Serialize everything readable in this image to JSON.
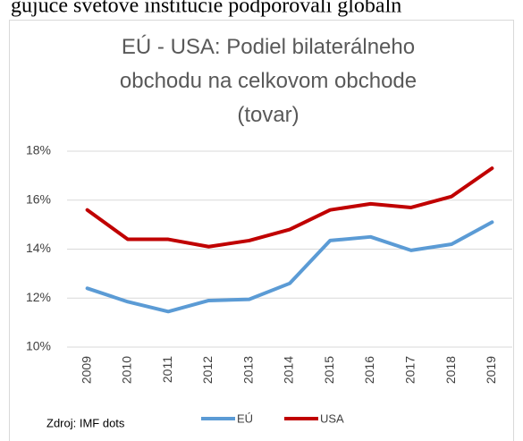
{
  "page_text": "gujúce svetové inštitúcie podporovali globáln",
  "chart_data": {
    "type": "line",
    "title": "EÚ - USA: Podiel bilaterálneho obchodu na celkovom obchode (tovar)",
    "source": "Zdroj: IMF dots",
    "categories": [
      "2009",
      "2010",
      "2011",
      "2012",
      "2013",
      "2014",
      "2015",
      "2016",
      "2017",
      "2018",
      "2019"
    ],
    "series": [
      {
        "name": "EÚ",
        "color": "#5b9bd5",
        "values": [
          12.4,
          11.85,
          11.45,
          11.9,
          11.95,
          12.6,
          14.35,
          14.5,
          13.95,
          14.2,
          15.1
        ]
      },
      {
        "name": "USA",
        "color": "#c00000",
        "values": [
          15.6,
          14.4,
          14.4,
          14.1,
          14.35,
          14.8,
          15.6,
          15.85,
          15.7,
          16.15,
          17.3
        ]
      }
    ],
    "ylim": [
      10,
      18
    ],
    "yticks": [
      {
        "value": 10,
        "label": "10%"
      },
      {
        "value": 12,
        "label": "12%"
      },
      {
        "value": 14,
        "label": "14%"
      },
      {
        "value": 16,
        "label": "16%"
      },
      {
        "value": 18,
        "label": "18%"
      }
    ],
    "grid": true,
    "legend": "bottom"
  }
}
